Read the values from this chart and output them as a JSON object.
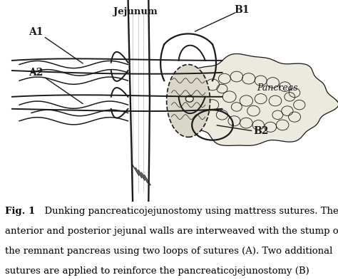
{
  "caption_bold": "Fig. 1",
  "caption_lines": [
    "  Dunking pancreaticojejunostomy using mattress sutures. The",
    "anterior and posterior jejunal walls are interweaved with the stump of",
    "the remnant pancreas using two loops of sutures (A). Two additional",
    "sutures are applied to reinforce the pancreaticojejunostomy (B)"
  ],
  "label_jejunum": "Jejunum",
  "label_A1": "A1",
  "label_A2": "A2",
  "label_B1": "B1",
  "label_B2": "B2",
  "label_Pancreas": "Pancreas",
  "bg_color": "#ffffff",
  "ink_color": "#1a1a1a",
  "pancreas_fill": "#e0ddd0",
  "stump_fill": "#d8d4c4",
  "fig_width": 4.74,
  "fig_height": 3.93,
  "dpi": 100
}
